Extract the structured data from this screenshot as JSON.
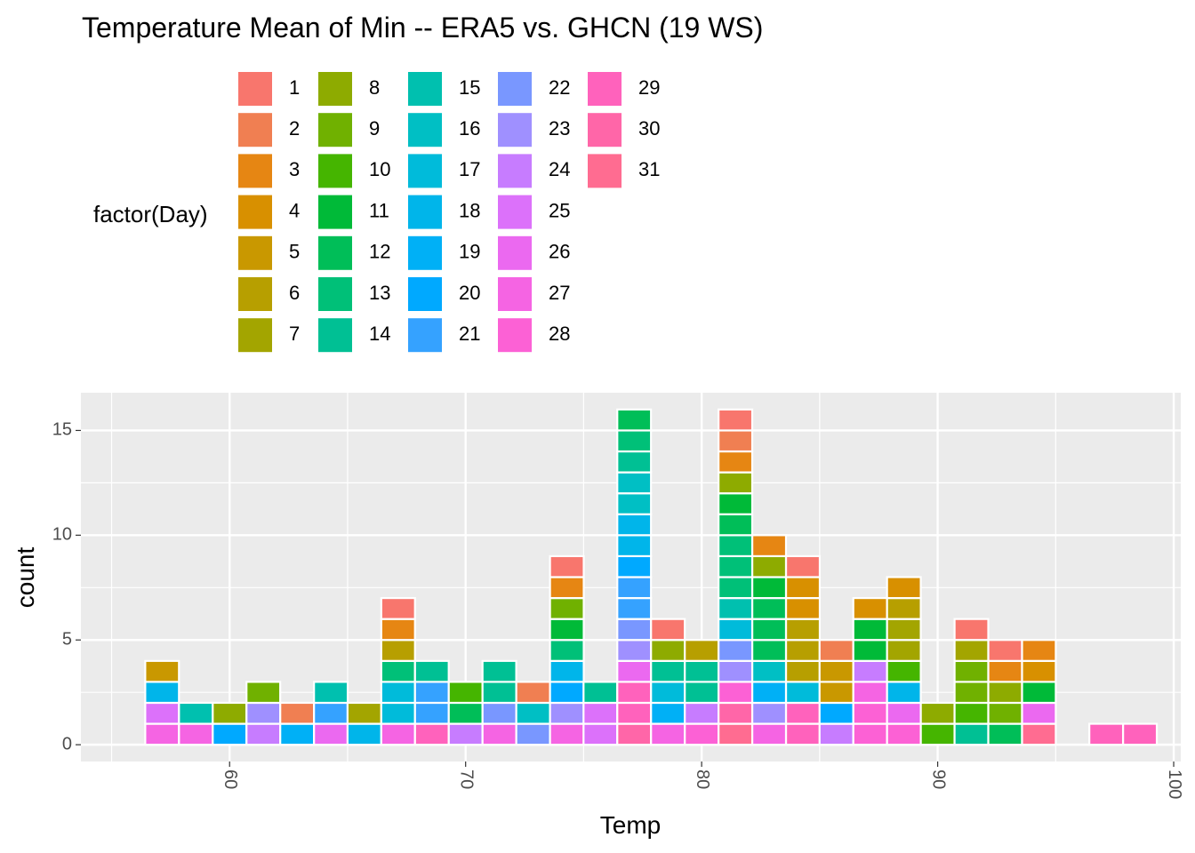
{
  "chart_data": {
    "type": "bar",
    "subtype": "stacked-dotplot-histogram",
    "title": "Temperature Mean of Min -- ERA5 vs. GHCN (19 WS)",
    "xlabel": "Temp",
    "ylabel": "count",
    "xlim": [
      53.7,
      100.3
    ],
    "ylim": [
      -0.8,
      16.8
    ],
    "x_ticks": [
      60,
      70,
      80,
      90,
      100
    ],
    "x_tick_labels": [
      "60",
      "70",
      "80",
      "90",
      "100"
    ],
    "y_ticks": [
      0,
      5,
      10,
      15
    ],
    "y_tick_labels": [
      "0",
      "5",
      "10",
      "15"
    ],
    "x_minor_ticks": [
      55,
      65,
      75,
      85,
      95
    ],
    "y_minor_ticks": [
      2.5,
      7.5,
      12.5
    ],
    "grid": true,
    "bin_width": 1.428,
    "legend": {
      "title": "factor(Day)",
      "placement": "top",
      "columns": 5,
      "rows": 7,
      "entries": [
        {
          "label": "1",
          "color": "#F8766D"
        },
        {
          "label": "2",
          "color": "#F07F52"
        },
        {
          "label": "3",
          "color": "#E68613"
        },
        {
          "label": "4",
          "color": "#D89000"
        },
        {
          "label": "5",
          "color": "#C99800"
        },
        {
          "label": "6",
          "color": "#B79F00"
        },
        {
          "label": "7",
          "color": "#A3A500"
        },
        {
          "label": "8",
          "color": "#8EAB00"
        },
        {
          "label": "9",
          "color": "#70B100"
        },
        {
          "label": "10",
          "color": "#45B500"
        },
        {
          "label": "11",
          "color": "#00BA38"
        },
        {
          "label": "12",
          "color": "#00BE58"
        },
        {
          "label": "13",
          "color": "#00C078"
        },
        {
          "label": "14",
          "color": "#00C094"
        },
        {
          "label": "15",
          "color": "#00C0AF"
        },
        {
          "label": "16",
          "color": "#00BFC4"
        },
        {
          "label": "17",
          "color": "#00BBDA"
        },
        {
          "label": "18",
          "color": "#00B5EA"
        },
        {
          "label": "19",
          "color": "#00B0F6"
        },
        {
          "label": "20",
          "color": "#00A9FF"
        },
        {
          "label": "21",
          "color": "#35A2FF"
        },
        {
          "label": "22",
          "color": "#7997FF"
        },
        {
          "label": "23",
          "color": "#9F90FF"
        },
        {
          "label": "24",
          "color": "#C77CFF"
        },
        {
          "label": "25",
          "color": "#DC71FA"
        },
        {
          "label": "26",
          "color": "#EB69F0"
        },
        {
          "label": "27",
          "color": "#F564E3"
        },
        {
          "label": "28",
          "color": "#FC61D5"
        },
        {
          "label": "29",
          "color": "#FF62BC"
        },
        {
          "label": "30",
          "color": "#FF66A8"
        },
        {
          "label": "31",
          "color": "#FF6C91"
        }
      ]
    },
    "bins": [
      {
        "x": 57.14,
        "days": [
          27,
          25,
          18,
          5
        ]
      },
      {
        "x": 58.57,
        "days": [
          27,
          15
        ]
      },
      {
        "x": 60.0,
        "days": [
          20,
          8
        ]
      },
      {
        "x": 61.43,
        "days": [
          24,
          23,
          9
        ]
      },
      {
        "x": 62.86,
        "days": [
          19,
          2
        ]
      },
      {
        "x": 64.29,
        "days": [
          26,
          21,
          15
        ]
      },
      {
        "x": 65.71,
        "days": [
          18,
          7
        ]
      },
      {
        "x": 67.14,
        "days": [
          27,
          17,
          17,
          13,
          6,
          3,
          1
        ]
      },
      {
        "x": 68.57,
        "days": [
          29,
          21,
          21,
          14
        ]
      },
      {
        "x": 70.0,
        "days": [
          24,
          12,
          10
        ]
      },
      {
        "x": 71.43,
        "days": [
          27,
          22,
          14,
          14
        ]
      },
      {
        "x": 72.86,
        "days": [
          22,
          16,
          2
        ]
      },
      {
        "x": 74.29,
        "days": [
          27,
          23,
          20,
          18,
          13,
          11,
          9,
          3,
          1
        ]
      },
      {
        "x": 75.71,
        "days": [
          25,
          25,
          14
        ]
      },
      {
        "x": 77.14,
        "days": [
          30,
          29,
          29,
          26,
          23,
          22,
          21,
          21,
          20,
          18,
          18,
          16,
          16,
          14,
          13,
          12
        ]
      },
      {
        "x": 78.57,
        "days": [
          27,
          19,
          17,
          14,
          8,
          1
        ]
      },
      {
        "x": 80.0,
        "days": [
          28,
          24,
          14,
          14,
          6
        ]
      },
      {
        "x": 81.43,
        "days": [
          31,
          30,
          28,
          23,
          22,
          17,
          15,
          13,
          13,
          13,
          12,
          11,
          8,
          3,
          2,
          1
        ]
      },
      {
        "x": 82.86,
        "days": [
          27,
          23,
          19,
          16,
          12,
          12,
          12,
          11,
          8,
          3
        ]
      },
      {
        "x": 84.29,
        "days": [
          29,
          29,
          17,
          6,
          6,
          6,
          4,
          4,
          1
        ]
      },
      {
        "x": 85.71,
        "days": [
          24,
          20,
          5,
          5,
          2
        ]
      },
      {
        "x": 87.14,
        "days": [
          28,
          28,
          27,
          24,
          11,
          11,
          4
        ]
      },
      {
        "x": 88.57,
        "days": [
          28,
          26,
          18,
          10,
          7,
          7,
          6,
          4
        ]
      },
      {
        "x": 90.0,
        "days": [
          10,
          8
        ]
      },
      {
        "x": 91.43,
        "days": [
          14,
          10,
          9,
          9,
          7,
          1
        ]
      },
      {
        "x": 92.86,
        "days": [
          12,
          9,
          8,
          3,
          1
        ]
      },
      {
        "x": 94.29,
        "days": [
          31,
          26,
          11,
          4,
          3
        ]
      },
      {
        "x": 97.14,
        "days": [
          29
        ]
      },
      {
        "x": 98.57,
        "days": [
          29
        ]
      }
    ]
  }
}
